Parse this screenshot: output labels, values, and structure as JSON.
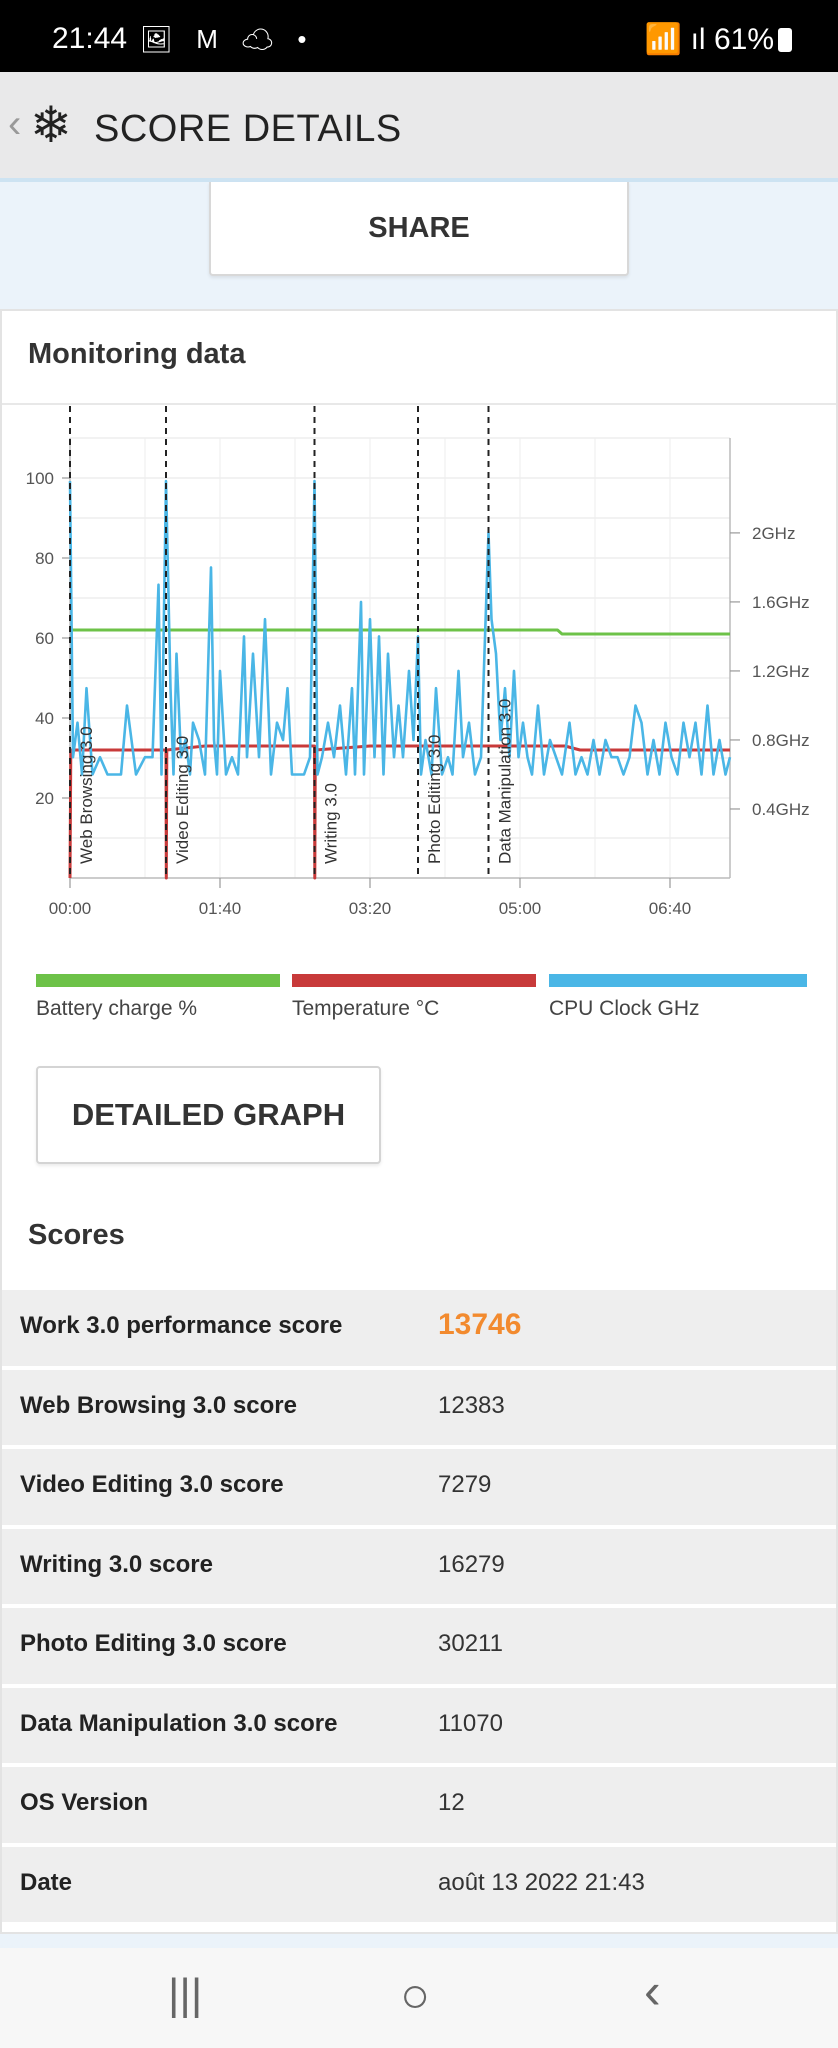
{
  "status": {
    "time": "21:44",
    "icons": "🖼 M ☁ •",
    "signal": "📶 ıl",
    "battery": "61%"
  },
  "header": {
    "back": "‹",
    "logo": "❄",
    "title": "SCORE DETAILS"
  },
  "share_label": "SHARE",
  "monitoring": {
    "title": "Monitoring data",
    "detailed_graph_label": "DETAILED GRAPH",
    "legend": [
      {
        "label": "Battery charge %",
        "color": "#6dc248"
      },
      {
        "label": "Temperature °C",
        "color": "#c83a3a"
      },
      {
        "label": "CPU Clock GHz",
        "color": "#4ab6e6"
      }
    ]
  },
  "chart_data": {
    "type": "line",
    "x_ticks": [
      "00:00",
      "01:40",
      "03:20",
      "05:00",
      "06:40"
    ],
    "x_range_min": [
      0,
      440
    ],
    "y_left": {
      "ticks": [
        20,
        40,
        60,
        80,
        100
      ],
      "range": [
        0,
        110
      ]
    },
    "y_right": {
      "ticks": [
        "0.4GHz",
        "0.8GHz",
        "1.2GHz",
        "1.6GHz",
        "2GHz"
      ],
      "values": [
        0.4,
        0.8,
        1.2,
        1.6,
        2.0
      ],
      "range": [
        0,
        2.55
      ]
    },
    "markers": [
      {
        "label": "Web Browsing 3.0",
        "t": 0
      },
      {
        "label": "Video Editing 3.0",
        "t": 64
      },
      {
        "label": "Writing 3.0",
        "t": 163
      },
      {
        "label": "Photo Editing 3.0",
        "t": 232
      },
      {
        "label": "Data Manipulation 3.0",
        "t": 279
      }
    ],
    "series": [
      {
        "name": "Battery charge %",
        "color": "#6dc248",
        "points": [
          [
            0,
            62
          ],
          [
            325,
            62
          ],
          [
            328,
            61
          ],
          [
            440,
            61
          ]
        ]
      },
      {
        "name": "Temperature °C",
        "color": "#c83a3a",
        "points": [
          [
            0,
            0
          ],
          [
            0.5,
            32
          ],
          [
            64,
            32
          ],
          [
            64.2,
            0
          ],
          [
            64.5,
            32
          ],
          [
            90,
            33
          ],
          [
            163,
            33
          ],
          [
            163.2,
            0
          ],
          [
            163.5,
            32
          ],
          [
            200,
            33
          ],
          [
            330,
            33
          ],
          [
            340,
            32
          ],
          [
            440,
            32
          ]
        ]
      },
      {
        "name": "CPU Clock GHz",
        "color": "#4ab6e6",
        "points": [
          [
            0,
            2.3
          ],
          [
            2,
            0.7
          ],
          [
            5,
            0.9
          ],
          [
            8,
            0.6
          ],
          [
            11,
            1.1
          ],
          [
            15,
            0.6
          ],
          [
            20,
            0.7
          ],
          [
            25,
            0.6
          ],
          [
            30,
            0.6
          ],
          [
            34,
            0.6
          ],
          [
            38,
            1.0
          ],
          [
            44,
            0.6
          ],
          [
            50,
            0.7
          ],
          [
            55,
            0.7
          ],
          [
            59,
            1.7
          ],
          [
            61,
            0.6
          ],
          [
            64,
            2.3
          ],
          [
            67,
            1.1
          ],
          [
            69,
            0.6
          ],
          [
            71,
            1.3
          ],
          [
            74,
            0.7
          ],
          [
            77,
            0.8
          ],
          [
            80,
            0.6
          ],
          [
            82,
            0.9
          ],
          [
            86,
            0.8
          ],
          [
            90,
            0.6
          ],
          [
            94,
            1.8
          ],
          [
            96,
            0.8
          ],
          [
            98,
            0.6
          ],
          [
            100,
            1.2
          ],
          [
            104,
            0.6
          ],
          [
            108,
            0.7
          ],
          [
            112,
            0.6
          ],
          [
            116,
            1.4
          ],
          [
            118,
            0.7
          ],
          [
            122,
            1.3
          ],
          [
            126,
            0.7
          ],
          [
            130,
            1.5
          ],
          [
            134,
            0.6
          ],
          [
            138,
            0.9
          ],
          [
            142,
            0.8
          ],
          [
            145,
            1.1
          ],
          [
            148,
            0.6
          ],
          [
            152,
            0.6
          ],
          [
            156,
            0.6
          ],
          [
            160,
            0.7
          ],
          [
            163,
            2.3
          ],
          [
            165,
            0.6
          ],
          [
            168,
            0.7
          ],
          [
            172,
            0.9
          ],
          [
            176,
            0.7
          ],
          [
            180,
            1.0
          ],
          [
            184,
            0.6
          ],
          [
            188,
            1.1
          ],
          [
            190,
            0.6
          ],
          [
            194,
            1.6
          ],
          [
            196,
            0.6
          ],
          [
            200,
            1.5
          ],
          [
            203,
            0.7
          ],
          [
            206,
            1.4
          ],
          [
            209,
            0.6
          ],
          [
            212,
            1.3
          ],
          [
            216,
            0.7
          ],
          [
            219,
            1.0
          ],
          [
            222,
            0.7
          ],
          [
            226,
            1.2
          ],
          [
            229,
            0.8
          ],
          [
            232,
            1.4
          ],
          [
            234,
            0.6
          ],
          [
            237,
            0.8
          ],
          [
            241,
            0.6
          ],
          [
            244,
            1.1
          ],
          [
            248,
            0.6
          ],
          [
            252,
            0.7
          ],
          [
            255,
            0.6
          ],
          [
            259,
            1.2
          ],
          [
            262,
            0.7
          ],
          [
            266,
            0.9
          ],
          [
            270,
            0.6
          ],
          [
            274,
            0.7
          ],
          [
            279,
            2.0
          ],
          [
            281,
            1.5
          ],
          [
            284,
            1.3
          ],
          [
            287,
            0.8
          ],
          [
            290,
            1.1
          ],
          [
            293,
            0.7
          ],
          [
            296,
            1.2
          ],
          [
            299,
            0.7
          ],
          [
            302,
            0.9
          ],
          [
            305,
            0.7
          ],
          [
            308,
            0.6
          ],
          [
            312,
            1.0
          ],
          [
            316,
            0.6
          ],
          [
            320,
            0.8
          ],
          [
            324,
            0.7
          ],
          [
            328,
            0.6
          ],
          [
            333,
            0.9
          ],
          [
            337,
            0.6
          ],
          [
            341,
            0.7
          ],
          [
            345,
            0.6
          ],
          [
            349,
            0.8
          ],
          [
            353,
            0.6
          ],
          [
            357,
            0.8
          ],
          [
            361,
            0.7
          ],
          [
            365,
            0.7
          ],
          [
            369,
            0.6
          ],
          [
            373,
            0.7
          ],
          [
            377,
            1.0
          ],
          [
            381,
            0.9
          ],
          [
            385,
            0.6
          ],
          [
            389,
            0.8
          ],
          [
            393,
            0.6
          ],
          [
            397,
            0.9
          ],
          [
            401,
            0.7
          ],
          [
            405,
            0.6
          ],
          [
            409,
            0.9
          ],
          [
            413,
            0.7
          ],
          [
            417,
            0.9
          ],
          [
            421,
            0.6
          ],
          [
            425,
            1.0
          ],
          [
            429,
            0.6
          ],
          [
            433,
            0.8
          ],
          [
            437,
            0.6
          ],
          [
            440,
            0.7
          ]
        ]
      }
    ],
    "grid": true
  },
  "scores": {
    "title": "Scores",
    "rows": [
      {
        "label": "Work 3.0 performance score",
        "value": "13746"
      },
      {
        "label": "Web Browsing 3.0 score",
        "value": "12383"
      },
      {
        "label": "Video Editing 3.0 score",
        "value": "7279"
      },
      {
        "label": "Writing 3.0 score",
        "value": "16279"
      },
      {
        "label": "Photo Editing 3.0 score",
        "value": "30211"
      },
      {
        "label": "Data Manipulation 3.0 score",
        "value": "11070"
      },
      {
        "label": "OS Version",
        "value": "12"
      },
      {
        "label": "Date",
        "value": "août 13 2022 21:43"
      }
    ]
  },
  "navbar": {
    "recent": "|||",
    "home": "○",
    "back": "‹"
  }
}
